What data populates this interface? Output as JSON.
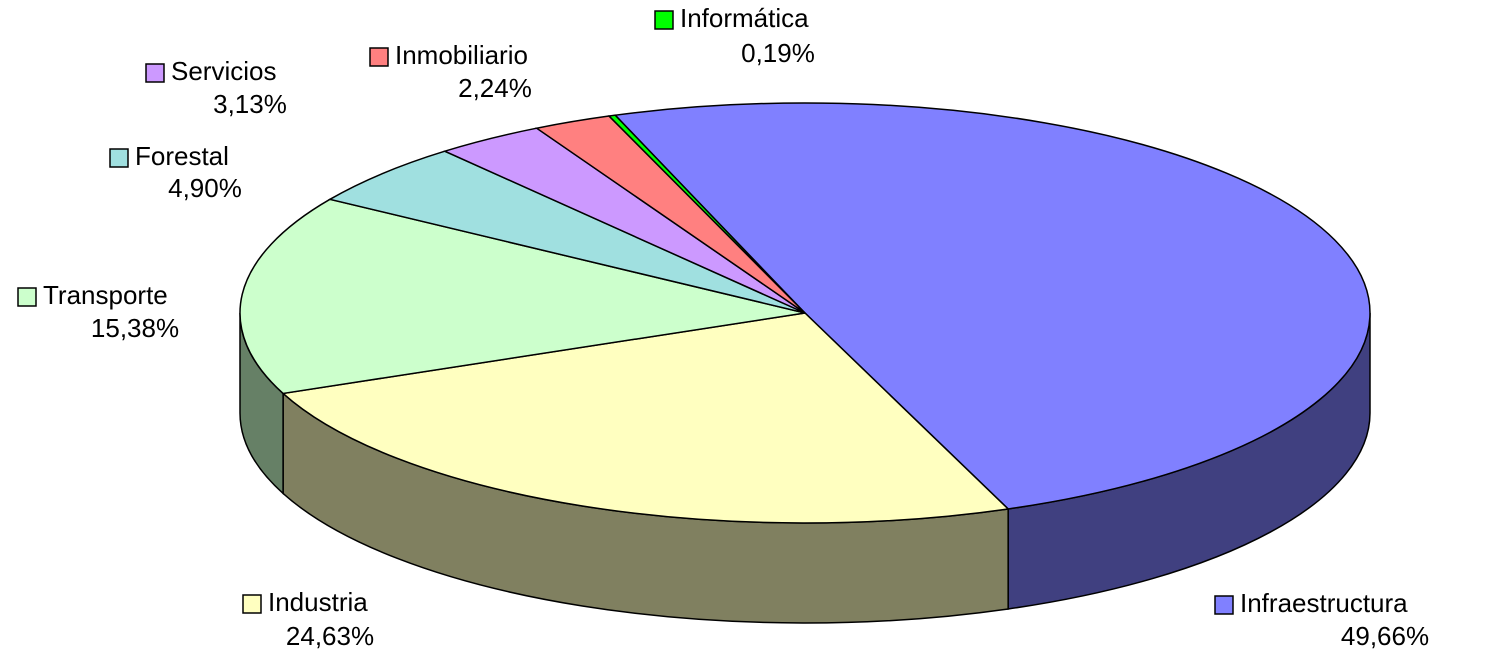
{
  "chart_data": {
    "type": "pie3d",
    "categories": [
      "Informática",
      "Infraestructura",
      "Industria",
      "Transporte",
      "Forestal",
      "Servicios",
      "Inmobiliario"
    ],
    "values": [
      0.19,
      49.66,
      24.63,
      15.38,
      4.9,
      3.13,
      2.24
    ],
    "value_labels": [
      "0,19%",
      "49,66%",
      "24,63%",
      "15,38%",
      "4,90%",
      "3,13%",
      "2,24%"
    ],
    "colors": [
      "#00ff00",
      "#8080ff",
      "#ffffc0",
      "#ccffcc",
      "#a0e0e0",
      "#cc99ff",
      "#ff8080"
    ]
  }
}
